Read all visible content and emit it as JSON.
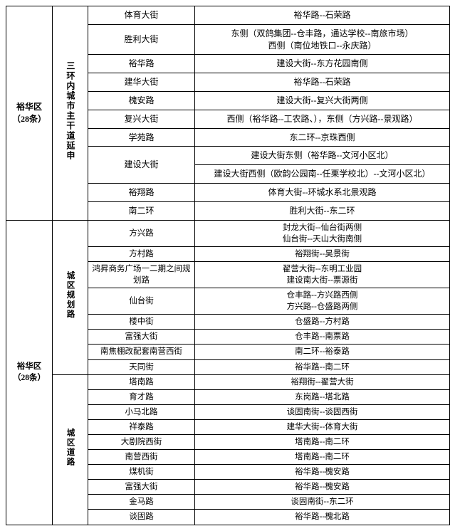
{
  "section1": {
    "district": "裕华区\n（28条）",
    "category": "三环内城市主干道延申",
    "rows": [
      {
        "street": "体育大街",
        "desc": "裕华路--石荣路"
      },
      {
        "street": "胜利大街",
        "desc": "东侧（双鸽集团--仓丰路，通达学校--南旅市场）\n西侧（南位地铁口--永庆路）"
      },
      {
        "street": "裕华路",
        "desc": "建设大街--东方花园南侧"
      },
      {
        "street": "建华大街",
        "desc": "裕华路--石荣路"
      },
      {
        "street": "槐安路",
        "desc": "建设大街--复兴大街两侧"
      },
      {
        "street": "复兴大街",
        "desc": "西侧（裕华路--工农路、），东侧（方兴路--景观路）"
      },
      {
        "street": "学苑路",
        "desc": "东二环--京珠西侧"
      },
      {
        "street": "建设大街",
        "desc_a": "建设大街东侧（裕华路--文河小区北）",
        "desc_b": "建设大街西侧（欧韵公园南--任栗学校北）--文河小区北）"
      },
      {
        "street": "裕翔路",
        "desc": "体育大街--环城水系北景观路"
      },
      {
        "street": "南二环",
        "desc": "胜利大街--东二环"
      }
    ]
  },
  "section2": {
    "district": "裕华区\n（28条）",
    "cat_a": "城区规划路",
    "cat_b": "城区道路",
    "rows_a": [
      {
        "street": "方兴路",
        "desc": "封龙大街--仙台街两侧\n仙台街--天山大街南侧"
      },
      {
        "street": "方村路",
        "desc": "裕翔街--昊景街"
      },
      {
        "street": "鸿昇商务广场一二期之间规划路",
        "desc": "翟营大街--东明工业园\n建设南大街--票源街"
      },
      {
        "street": "仙台街",
        "desc": "仓丰路--方兴路西侧\n方兴路--仓盛路两侧"
      },
      {
        "street": "楼中街",
        "desc": "仓盛路--方村路"
      },
      {
        "street": "富强大街",
        "desc": "仓丰路--南票路"
      },
      {
        "street": "南焦棚改配套南营西街",
        "desc": "南二环--裕泰路"
      },
      {
        "street": "天同街",
        "desc": "裕华路--南二环"
      }
    ],
    "rows_b": [
      {
        "street": "塔南路",
        "desc": "裕翔街--翟营大街"
      },
      {
        "street": "育才路",
        "desc": "东岗路--塔北路"
      },
      {
        "street": "小马北路",
        "desc": "谈固南街--谈固西街"
      },
      {
        "street": "祥泰路",
        "desc": "建华大街--体育大街"
      },
      {
        "street": "大剧院西街",
        "desc": "塔南路--南二环"
      },
      {
        "street": "南营西街",
        "desc": "塔南路--南二环"
      },
      {
        "street": "煤机街",
        "desc": "裕华路--槐安路"
      },
      {
        "street": "富强大街",
        "desc": "裕华路--槐安路"
      },
      {
        "street": "金马路",
        "desc": "谈固南街--东二环"
      },
      {
        "street": "谈固路",
        "desc": "裕华路--槐北路"
      }
    ]
  },
  "style": {
    "border_color": "#000000",
    "background": "#ffffff",
    "font_family": "SimSun",
    "base_font_size_pt": 9,
    "bold_cols": [
      "district",
      "category"
    ]
  }
}
